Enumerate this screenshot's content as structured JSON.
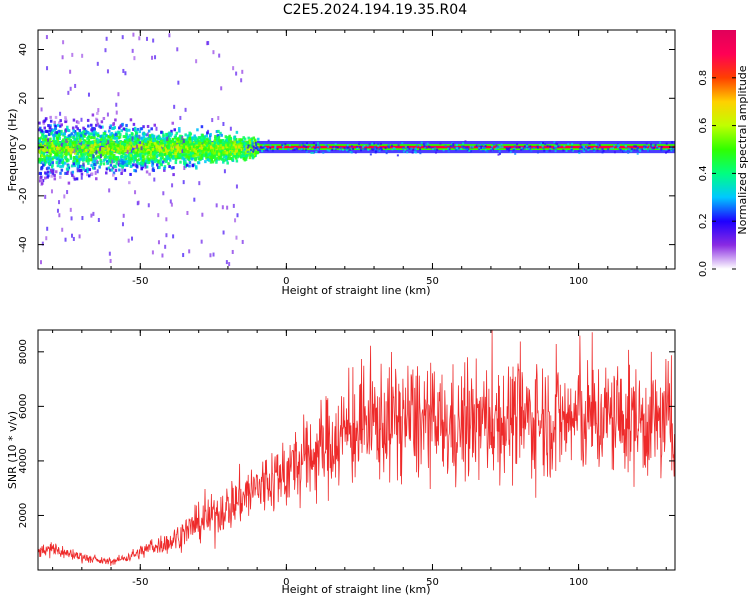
{
  "figure_title": "C2E5.2024.194.19.35.R04",
  "chart_data": [
    {
      "type": "heatmap",
      "title": "",
      "xlabel": "Height of straight line (km)",
      "ylabel": "Frequency (Hz)",
      "xlim": [
        -85,
        133
      ],
      "ylim": [
        -50,
        48
      ],
      "xticks": [
        -50,
        0,
        50,
        100
      ],
      "yticks": [
        -40,
        -20,
        0,
        20,
        40
      ],
      "colorbar": {
        "label": "Normalized spectral amplitude",
        "range": [
          0.0,
          1.0
        ],
        "ticks": [
          "0.0",
          "0.2",
          "0.4",
          "0.6",
          "0.8"
        ],
        "colormap": [
          "#ffffff",
          "#8a2be2",
          "#1e00ff",
          "#00c8ff",
          "#00ff80",
          "#30ff00",
          "#c0ff00",
          "#ffd000",
          "#ff4000",
          "#ff0055",
          "#e0005a"
        ]
      },
      "description_values": {
        "carrier_frequency_hz": 0,
        "broadband_spread_below_km": -15,
        "broadband_half_width_hz": 10
      }
    },
    {
      "type": "line",
      "title": "",
      "xlabel": "Height of straight line (km)",
      "ylabel": "SNR (10 * v/v)",
      "xlim": [
        -85,
        133
      ],
      "ylim": [
        0,
        8800
      ],
      "xticks": [
        -50,
        0,
        50,
        100
      ],
      "yticks": [
        2000,
        4000,
        6000,
        8000
      ],
      "color": "#ee2a2a",
      "series": [
        {
          "x": [
            -85,
            -80,
            -75,
            -70,
            -65,
            -60,
            -55,
            -50,
            -45,
            -40,
            -35,
            -30,
            -25,
            -20,
            -15,
            -10,
            -5,
            0,
            5,
            10,
            15,
            20,
            25,
            30,
            35,
            40,
            45,
            50,
            55,
            60,
            65,
            70,
            75,
            80,
            85,
            90,
            95,
            100,
            105,
            110,
            115,
            120,
            125,
            130,
            133
          ],
          "values": [
            700,
            800,
            600,
            500,
            350,
            300,
            450,
            650,
            900,
            1000,
            1400,
            1700,
            2000,
            2300,
            2700,
            3000,
            3300,
            3600,
            3900,
            4300,
            4700,
            5000,
            5200,
            5400,
            5500,
            5600,
            5500,
            5300,
            5200,
            5300,
            5400,
            5500,
            5500,
            5600,
            5500,
            5600,
            5500,
            5600,
            5500,
            5600,
            5500,
            5500,
            5400,
            5500,
            5400
          ]
        }
      ]
    }
  ]
}
